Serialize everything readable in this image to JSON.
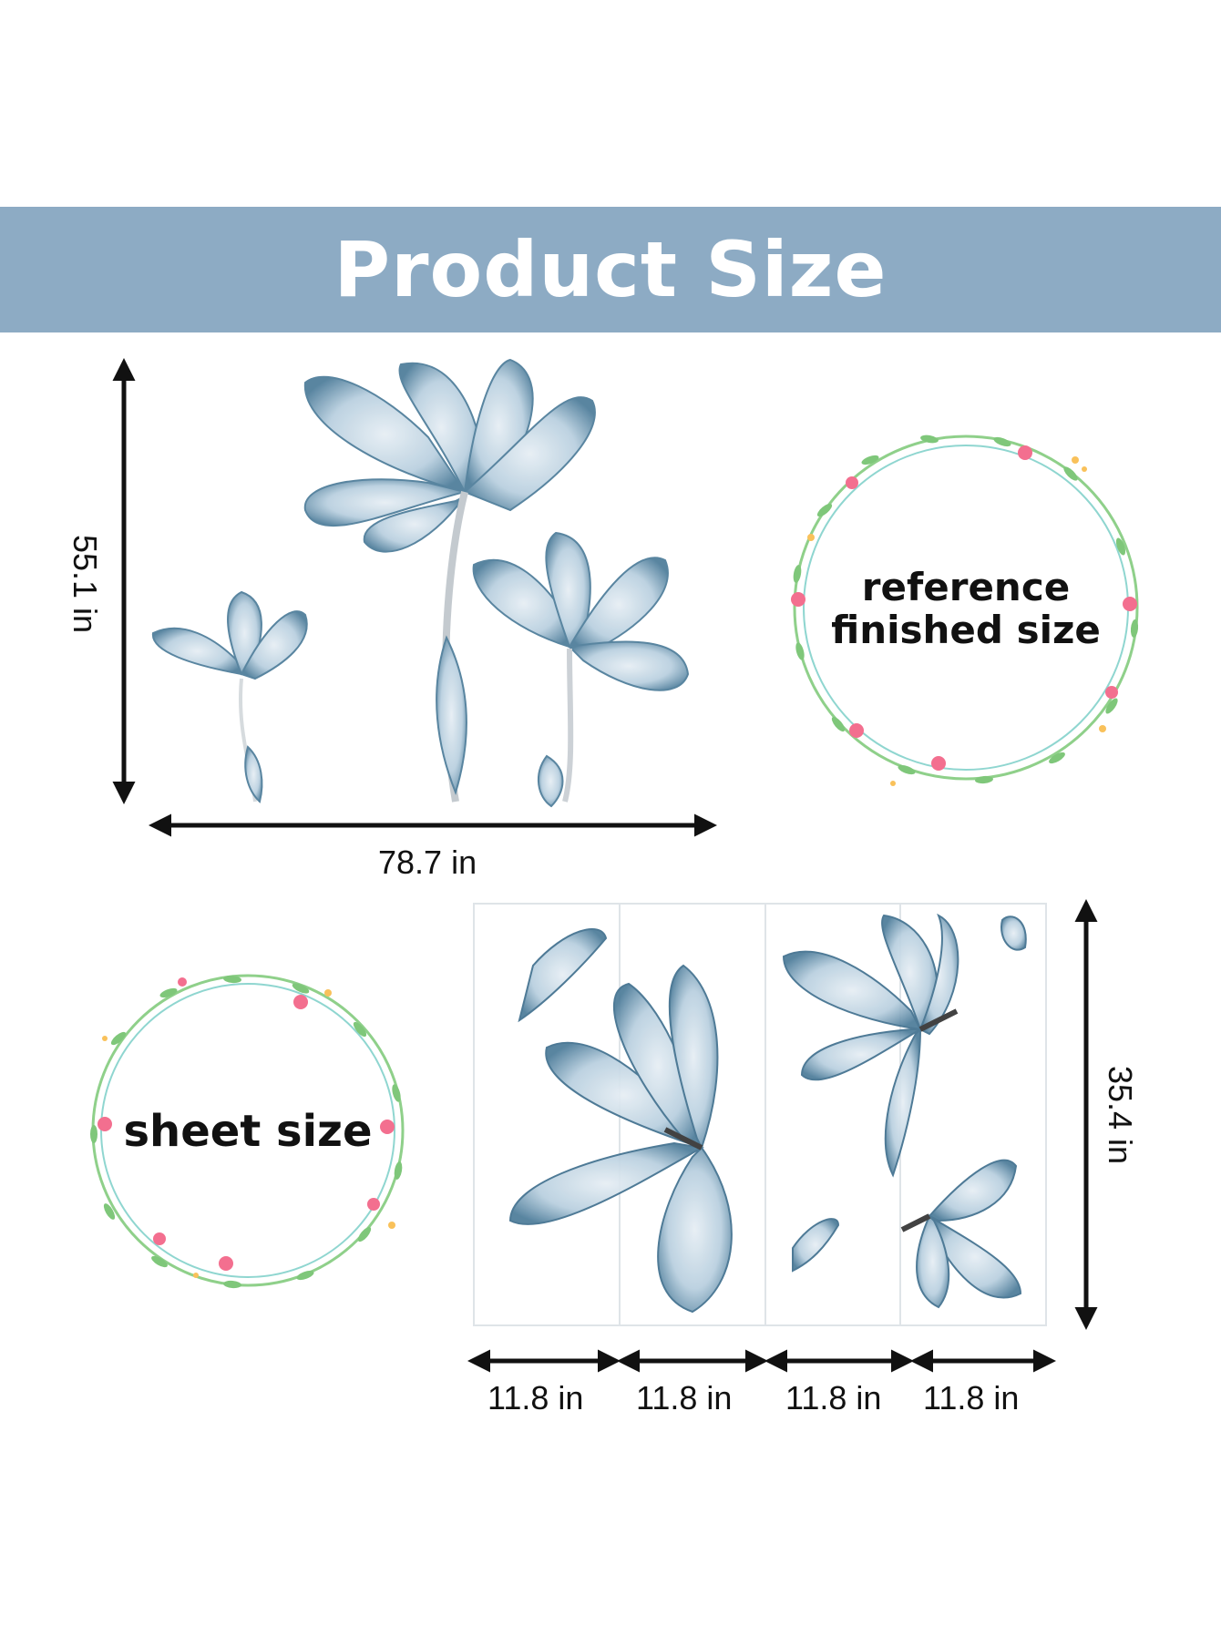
{
  "banner": {
    "title": "Product Size",
    "color": "#8dabc4"
  },
  "finished": {
    "height_label": "55.1 in",
    "width_label": "78.7 in",
    "wreath_line1": "reference",
    "wreath_line2": "finished size"
  },
  "sheet": {
    "wreath_label": "sheet size",
    "height_label": "35.4 in",
    "panel_widths": [
      "11.8 in",
      "11.8 in",
      "11.8 in",
      "11.8 in"
    ]
  },
  "colors": {
    "petal": "#3f6f8e",
    "petal_light": "#c9dbe7",
    "wreath_leaf": "#7fc77a",
    "wreath_flower": "#f36f8f"
  }
}
